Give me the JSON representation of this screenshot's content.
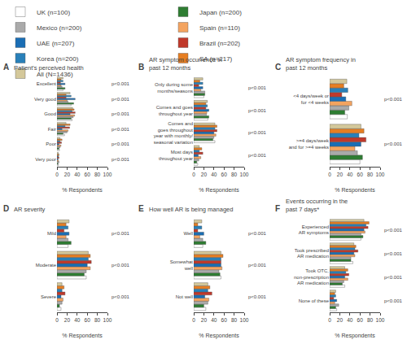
{
  "chart_data": [
    {
      "type": "bar",
      "orientation": "horizontal",
      "label": "A",
      "title": "Patient's perceived health",
      "xlabel": "% Respondents",
      "categories": [
        "Very poor",
        "Poor",
        "Fair",
        "Good",
        "Very good",
        "Excellent"
      ],
      "series": [
        {
          "name": "UK (n=100)",
          "color": "#ffffff",
          "values": [
            3,
            5,
            15,
            30,
            28,
            12
          ]
        },
        {
          "name": "Japan (n=200)",
          "color": "#2e7d32",
          "values": [
            2,
            4,
            12,
            28,
            33,
            16
          ]
        },
        {
          "name": "Mexico (n=200)",
          "color": "#aaaaaa",
          "values": [
            4,
            6,
            20,
            32,
            22,
            10
          ]
        },
        {
          "name": "Spain (n=110)",
          "color": "#f4a460",
          "values": [
            3,
            8,
            22,
            35,
            20,
            8
          ]
        },
        {
          "name": "UAE (n=207)",
          "color": "#1a6eb5",
          "values": [
            2,
            4,
            10,
            26,
            36,
            16
          ]
        },
        {
          "name": "Brazil (n=202)",
          "color": "#c0392b",
          "values": [
            4,
            9,
            25,
            36,
            18,
            7
          ]
        },
        {
          "name": "Korea (n=200)",
          "color": "#2980b9",
          "values": [
            3,
            6,
            16,
            30,
            28,
            12
          ]
        },
        {
          "name": "SA (n=217)",
          "color": "#e67e22",
          "values": [
            4,
            10,
            26,
            34,
            18,
            8
          ]
        },
        {
          "name": "All (N=1436)",
          "color": "#d4c89a",
          "values": [
            3,
            6,
            18,
            31,
            26,
            12
          ]
        }
      ],
      "xlim": [
        0,
        100
      ],
      "xticks": [
        0,
        20,
        40,
        60,
        80,
        100
      ],
      "grid": false,
      "legend": "top",
      "annotations": [
        {
          "category": "Very poor",
          "text": "p<0.001"
        },
        {
          "category": "Poor",
          "text": "p<0.001"
        },
        {
          "category": "Fair",
          "text": "p<0.001"
        },
        {
          "category": "Good",
          "text": "p<0.001"
        },
        {
          "category": "Very good",
          "text": "p<0.001"
        },
        {
          "category": "Excellent",
          "text": "p<0.001"
        }
      ]
    },
    {
      "type": "bar",
      "orientation": "horizontal",
      "label": "B",
      "title": "AR symptom occurrence in\npast 12 months",
      "xlabel": "% Respondents",
      "categories": [
        "Most days\nthroughout year",
        "Comes and\ngoes throughout\nyear with monthly/\nseasonal variation",
        "Comes and goes\nthroughout year",
        "Only during some\nmonths/seasons"
      ],
      "series": [
        {
          "name": "UK (n=100)",
          "color": "#ffffff",
          "values": [
            8,
            42,
            28,
            20
          ]
        },
        {
          "name": "Japan (n=200)",
          "color": "#2e7d32",
          "values": [
            6,
            38,
            30,
            22
          ]
        },
        {
          "name": "Mexico (n=200)",
          "color": "#aaaaaa",
          "values": [
            10,
            40,
            25,
            22
          ]
        },
        {
          "name": "Spain (n=110)",
          "color": "#f4a460",
          "values": [
            14,
            44,
            26,
            14
          ]
        },
        {
          "name": "UAE (n=207)",
          "color": "#1a6eb5",
          "values": [
            9,
            40,
            30,
            18
          ]
        },
        {
          "name": "Brazil (n=202)",
          "color": "#c0392b",
          "values": [
            18,
            46,
            24,
            10
          ]
        },
        {
          "name": "Korea (n=200)",
          "color": "#2980b9",
          "values": [
            11,
            42,
            27,
            18
          ]
        },
        {
          "name": "SA (n=217)",
          "color": "#e67e22",
          "values": [
            16,
            46,
            24,
            12
          ]
        },
        {
          "name": "All (N=1436)",
          "color": "#d4c89a",
          "values": [
            11,
            42,
            27,
            18
          ]
        }
      ],
      "xlim": [
        0,
        100
      ],
      "xticks": [
        0,
        20,
        40,
        60,
        80,
        100
      ],
      "grid": false,
      "legend": "top",
      "annotations": [
        {
          "category": "Most days\nthroughout year",
          "text": "p<0.001"
        },
        {
          "category": "Comes and\ngoes throughout\nyear with monthly/\nseasonal variation",
          "text": "p<0.001"
        },
        {
          "category": "Comes and goes\nthroughout year",
          "text": "p<0.001"
        },
        {
          "category": "Only during some\nmonths/seasons",
          "text": "p<0.001"
        }
      ]
    },
    {
      "type": "bar",
      "orientation": "horizontal",
      "label": "C",
      "title": "AR symptom frequency in\npast 12 months",
      "xlabel": "% Respondents",
      "categories": [
        ">=4 days/week\nand for >=4 weeks",
        "<4 days/week or\nfor <4 weeks"
      ],
      "series": [
        {
          "name": "UK (n=100)",
          "color": "#ffffff",
          "values": [
            60,
            35
          ]
        },
        {
          "name": "Japan (n=200)",
          "color": "#2e7d32",
          "values": [
            65,
            30
          ]
        },
        {
          "name": "Mexico (n=200)",
          "color": "#aaaaaa",
          "values": [
            55,
            38
          ]
        },
        {
          "name": "Spain (n=110)",
          "color": "#f4a460",
          "values": [
            50,
            44
          ]
        },
        {
          "name": "UAE (n=207)",
          "color": "#1a6eb5",
          "values": [
            62,
            32
          ]
        },
        {
          "name": "Brazil (n=202)",
          "color": "#c0392b",
          "values": [
            72,
            24
          ]
        },
        {
          "name": "Korea (n=200)",
          "color": "#2980b9",
          "values": [
            58,
            36
          ]
        },
        {
          "name": "SA (n=217)",
          "color": "#e67e22",
          "values": [
            68,
            28
          ]
        },
        {
          "name": "All (N=1436)",
          "color": "#d4c89a",
          "values": [
            62,
            34
          ]
        }
      ],
      "xlim": [
        0,
        100
      ],
      "xticks": [
        0,
        20,
        40,
        60,
        80,
        100
      ],
      "grid": false,
      "legend": "top",
      "annotations": [
        {
          "category": ">=4 days/week\nand for >=4 weeks",
          "text": "p<0.001"
        },
        {
          "category": "<4 days/week or\nfor <4 weeks",
          "text": "p<0.001"
        }
      ]
    },
    {
      "type": "bar",
      "orientation": "horizontal",
      "label": "D",
      "title": "AR severity",
      "xlabel": "% Respondents",
      "categories": [
        "Severe",
        "Moderate",
        "Mild"
      ],
      "series": [
        {
          "name": "UK (n=100)",
          "color": "#ffffff",
          "values": [
            8,
            58,
            22
          ]
        },
        {
          "name": "Japan (n=200)",
          "color": "#2e7d32",
          "values": [
            5,
            54,
            28
          ]
        },
        {
          "name": "Mexico (n=200)",
          "color": "#aaaaaa",
          "values": [
            10,
            58,
            22
          ]
        },
        {
          "name": "Spain (n=110)",
          "color": "#f4a460",
          "values": [
            12,
            66,
            18
          ]
        },
        {
          "name": "UAE (n=207)",
          "color": "#1a6eb5",
          "values": [
            8,
            60,
            24
          ]
        },
        {
          "name": "Brazil (n=202)",
          "color": "#c0392b",
          "values": [
            16,
            68,
            14
          ]
        },
        {
          "name": "Korea (n=200)",
          "color": "#2980b9",
          "values": [
            10,
            62,
            22
          ]
        },
        {
          "name": "SA (n=217)",
          "color": "#e67e22",
          "values": [
            14,
            66,
            18
          ]
        },
        {
          "name": "All (N=1436)",
          "color": "#d4c89a",
          "values": [
            10,
            62,
            24
          ]
        }
      ],
      "xlim": [
        0,
        100
      ],
      "xticks": [
        0,
        20,
        40,
        60,
        80,
        100
      ],
      "grid": false,
      "legend": "top",
      "annotations": [
        {
          "category": "Severe",
          "text": "p<0.001"
        },
        {
          "category": "Moderate",
          "text": "p<0.001"
        },
        {
          "category": "Mild",
          "text": "p<0.001"
        }
      ]
    },
    {
      "type": "bar",
      "orientation": "horizontal",
      "label": "E",
      "title": "How well AR is being managed",
      "xlabel": "% Respondents",
      "categories": [
        "Not well",
        "Somewhat\nwell",
        "Well"
      ],
      "series": [
        {
          "name": "UK (n=100)",
          "color": "#ffffff",
          "values": [
            24,
            54,
            18
          ]
        },
        {
          "name": "Japan (n=200)",
          "color": "#2e7d32",
          "values": [
            20,
            52,
            24
          ]
        },
        {
          "name": "Mexico (n=200)",
          "color": "#aaaaaa",
          "values": [
            28,
            50,
            18
          ]
        },
        {
          "name": "Spain (n=110)",
          "color": "#f4a460",
          "values": [
            30,
            56,
            12
          ]
        },
        {
          "name": "UAE (n=207)",
          "color": "#1a6eb5",
          "values": [
            22,
            54,
            20
          ]
        },
        {
          "name": "Brazil (n=202)",
          "color": "#c0392b",
          "values": [
            36,
            54,
            8
          ]
        },
        {
          "name": "Korea (n=200)",
          "color": "#2980b9",
          "values": [
            28,
            54,
            16
          ]
        },
        {
          "name": "SA (n=217)",
          "color": "#e67e22",
          "values": [
            32,
            58,
            8
          ]
        },
        {
          "name": "All (N=1436)",
          "color": "#d4c89a",
          "values": [
            28,
            54,
            16
          ]
        }
      ],
      "xlim": [
        0,
        100
      ],
      "xticks": [
        0,
        20,
        40,
        60,
        80,
        100
      ],
      "grid": false,
      "legend": "top",
      "annotations": [
        {
          "category": "Not well",
          "text": "p<0.001"
        },
        {
          "category": "Somewhat\nwell",
          "text": "p<0.001"
        },
        {
          "category": "Well",
          "text": "p<0.001"
        }
      ]
    },
    {
      "type": "bar",
      "orientation": "horizontal",
      "label": "F",
      "title": "Events occurring in the\npast 7 days*",
      "xlabel": "% Respondents",
      "categories": [
        "None of these",
        "Took OTC,\nnon-prescription\nAR medication",
        "Took prescribed\nAR medication",
        "Experienced\nAR symptoms"
      ],
      "series": [
        {
          "name": "UK (n=100)",
          "color": "#ffffff",
          "values": [
            14,
            30,
            46,
            62
          ]
        },
        {
          "name": "Japan (n=200)",
          "color": "#2e7d32",
          "values": [
            12,
            25,
            42,
            66
          ]
        },
        {
          "name": "Mexico (n=200)",
          "color": "#aaaaaa",
          "values": [
            18,
            28,
            42,
            62
          ]
        },
        {
          "name": "Spain (n=110)",
          "color": "#f4a460",
          "values": [
            10,
            36,
            50,
            70
          ]
        },
        {
          "name": "UAE (n=207)",
          "color": "#1a6eb5",
          "values": [
            14,
            30,
            48,
            68
          ]
        },
        {
          "name": "Brazil (n=202)",
          "color": "#c0392b",
          "values": [
            8,
            38,
            56,
            76
          ]
        },
        {
          "name": "Korea (n=200)",
          "color": "#2980b9",
          "values": [
            12,
            32,
            50,
            72
          ]
        },
        {
          "name": "SA (n=217)",
          "color": "#e67e22",
          "values": [
            10,
            36,
            52,
            78
          ]
        },
        {
          "name": "All (N=1436)",
          "color": "#d4c89a",
          "values": [
            12,
            30,
            48,
            68
          ]
        }
      ],
      "xlim": [
        0,
        100
      ],
      "xticks": [
        0,
        20,
        40,
        60,
        80,
        100
      ],
      "grid": false,
      "legend": "top",
      "annotations": [
        {
          "category": "None of these",
          "text": "p<0.001"
        },
        {
          "category": "Took OTC,\nnon-prescription\nAR medication",
          "text": "p<0.001"
        },
        {
          "category": "Took prescribed\nAR medication",
          "text": "p<0.001"
        },
        {
          "category": "Experienced\nAR symptoms",
          "text": "p<0.001"
        }
      ]
    }
  ]
}
